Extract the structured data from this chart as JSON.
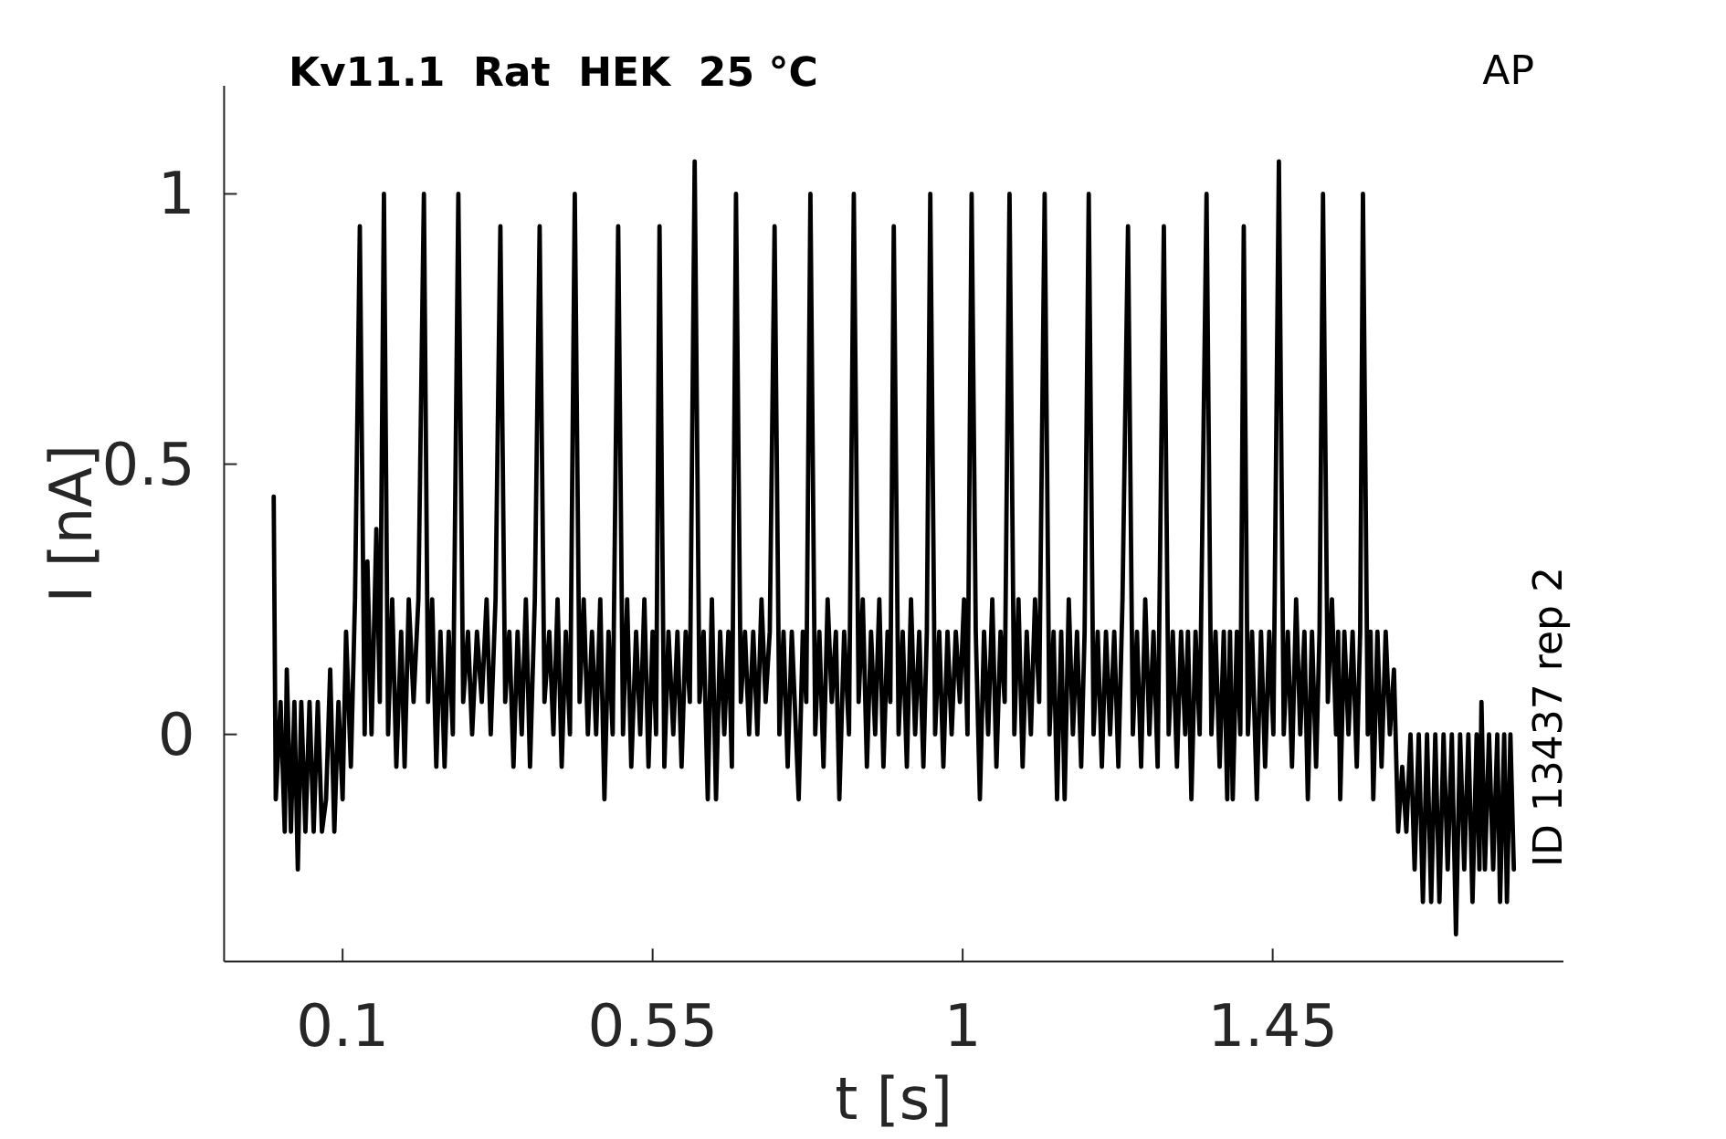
{
  "chart_data": {
    "type": "line",
    "title": "Kv11.1  Rat  HEK  25 °C",
    "xlabel": "t [s]",
    "ylabel": "I [nA]",
    "annotations": [
      "AP",
      "ID 13437 rep 2"
    ],
    "xlim": [
      -0.072,
      1.872
    ],
    "ylim": [
      -0.42,
      1.2
    ],
    "xticks": [
      0.1,
      0.55,
      1,
      1.45
    ],
    "yticks": [
      0,
      0.5,
      1
    ],
    "color": "#000000",
    "x": [
      0,
      0.003,
      0.01,
      0.016,
      0.019,
      0.025,
      0.03,
      0.035,
      0.04,
      0.046,
      0.052,
      0.058,
      0.064,
      0.07,
      0.076,
      0.082,
      0.088,
      0.094,
      0.1,
      0.105,
      0.112,
      0.118,
      0.125,
      0.132,
      0.136,
      0.142,
      0.149,
      0.154,
      0.16,
      0.166,
      0.172,
      0.178,
      0.185,
      0.19,
      0.196,
      0.203,
      0.21,
      0.218,
      0.224,
      0.23,
      0.236,
      0.242,
      0.248,
      0.254,
      0.26,
      0.268,
      0.275,
      0.282,
      0.288,
      0.295,
      0.302,
      0.309,
      0.315,
      0.322,
      0.329,
      0.336,
      0.342,
      0.348,
      0.354,
      0.36,
      0.366,
      0.372,
      0.379,
      0.386,
      0.393,
      0.4,
      0.406,
      0.412,
      0.418,
      0.424,
      0.43,
      0.437,
      0.444,
      0.45,
      0.456,
      0.462,
      0.468,
      0.474,
      0.48,
      0.486,
      0.492,
      0.5,
      0.507,
      0.513,
      0.519,
      0.526,
      0.532,
      0.538,
      0.544,
      0.55,
      0.555,
      0.56,
      0.567,
      0.573,
      0.58,
      0.586,
      0.592,
      0.598,
      0.604,
      0.611,
      0.618,
      0.624,
      0.63,
      0.636,
      0.642,
      0.648,
      0.654,
      0.66,
      0.665,
      0.671,
      0.678,
      0.684,
      0.69,
      0.696,
      0.702,
      0.708,
      0.714,
      0.72,
      0.727,
      0.734,
      0.74,
      0.746,
      0.752,
      0.762,
      0.768,
      0.773,
      0.779,
      0.786,
      0.792,
      0.798,
      0.804,
      0.81,
      0.816,
      0.821,
      0.828,
      0.835,
      0.842,
      0.849,
      0.855,
      0.861,
      0.867,
      0.873,
      0.879,
      0.885,
      0.891,
      0.895,
      0.9,
      0.907,
      0.913,
      0.919,
      0.925,
      0.931,
      0.937,
      0.943,
      0.948,
      0.953,
      0.96,
      0.966,
      0.972,
      0.978,
      0.984,
      0.99,
      0.996,
      1.002,
      1.007,
      1.013,
      1.019,
      1.025,
      1.031,
      1.037,
      1.043,
      1.049,
      1.055,
      1.061,
      1.068,
      1.075,
      1.081,
      1.087,
      1.093,
      1.099,
      1.105,
      1.111,
      1.119,
      1.126,
      1.132,
      1.137,
      1.143,
      1.148,
      1.154,
      1.16,
      1.166,
      1.172,
      1.177,
      1.183,
      1.19,
      1.196,
      1.202,
      1.208,
      1.214,
      1.22,
      1.226,
      1.232,
      1.24,
      1.247,
      1.253,
      1.259,
      1.265,
      1.271,
      1.277,
      1.283,
      1.292,
      1.299,
      1.305,
      1.311,
      1.317,
      1.323,
      1.327,
      1.332,
      1.338,
      1.344,
      1.354,
      1.361,
      1.367,
      1.373,
      1.379,
      1.384,
      1.388,
      1.392,
      1.398,
      1.403,
      1.408,
      1.414,
      1.42,
      1.427,
      1.433,
      1.439,
      1.445,
      1.451,
      1.459,
      1.466,
      1.472,
      1.478,
      1.484,
      1.49,
      1.496,
      1.501,
      1.507,
      1.513,
      1.518,
      1.523,
      1.53,
      1.536,
      1.542,
      1.545,
      1.548,
      1.554,
      1.56,
      1.566,
      1.572,
      1.577,
      1.581,
      1.588,
      1.592,
      1.596,
      1.602,
      1.608,
      1.614,
      1.62,
      1.626,
      1.632,
      1.638,
      1.644,
      1.65,
      1.656,
      1.662,
      1.668,
      1.674,
      1.68,
      1.686,
      1.692,
      1.698,
      1.704,
      1.71,
      1.716,
      1.722,
      1.728,
      1.734,
      1.74,
      1.746,
      1.75,
      1.753,
      1.758,
      1.764,
      1.77,
      1.776,
      1.78,
      1.786,
      1.79,
      1.795,
      1.8
    ],
    "values": [
      0.44,
      -0.12,
      0.06,
      -0.18,
      0.12,
      -0.18,
      0.06,
      -0.25,
      0.06,
      -0.18,
      0.06,
      -0.18,
      0.06,
      -0.18,
      -0.12,
      0.12,
      -0.18,
      0.06,
      -0.12,
      0.19,
      -0.06,
      0.25,
      0.94,
      0,
      0.32,
      0,
      0.38,
      0.06,
      1,
      0,
      0.25,
      -0.06,
      0.19,
      -0.06,
      0.25,
      0.06,
      0.25,
      1,
      0.06,
      0.25,
      -0.06,
      0.19,
      -0.06,
      0.19,
      0,
      1,
      0.06,
      0.19,
      0,
      0.19,
      0.06,
      0.25,
      0,
      0.25,
      0.94,
      0.06,
      0.19,
      -0.06,
      0.19,
      0,
      0.25,
      -0.06,
      0.25,
      0.94,
      0.06,
      0.19,
      0,
      0.25,
      -0.06,
      0.19,
      0,
      1,
      0.06,
      0.25,
      0,
      0.19,
      0,
      0.25,
      -0.12,
      0.19,
      0,
      0.94,
      0,
      0.25,
      -0.06,
      0.19,
      0,
      0.25,
      -0.06,
      0.19,
      0,
      0.94,
      -0.06,
      0.19,
      0,
      0.19,
      -0.06,
      0.19,
      0.06,
      1.06,
      0.06,
      0.19,
      -0.12,
      0.25,
      -0.12,
      0.19,
      0,
      0.19,
      -0.06,
      1,
      0.06,
      0.19,
      0,
      0.19,
      0,
      0.25,
      0.06,
      0.19,
      0.94,
      0,
      0.19,
      -0.06,
      0.19,
      -0.12,
      0.19,
      0.06,
      1,
      0,
      0.19,
      -0.06,
      0.25,
      0.06,
      0.19,
      -0.12,
      0.19,
      0,
      1,
      0.06,
      0.25,
      -0.06,
      0.19,
      0,
      0.25,
      -0.06,
      0.19,
      0.06,
      0.94,
      0,
      0.19,
      -0.06,
      0.25,
      0,
      0.19,
      -0.06,
      0.19,
      1,
      0,
      0.19,
      -0.06,
      0.19,
      0,
      0.19,
      0.06,
      0.25,
      0,
      1,
      0.19,
      -0.12,
      0.19,
      0,
      0.25,
      -0.06,
      0.19,
      0.06,
      1,
      0,
      0.25,
      -0.06,
      0.19,
      0,
      0.25,
      0.06,
      1,
      0,
      0.19,
      -0.12,
      0.19,
      -0.12,
      0.25,
      0,
      0.19,
      -0.06,
      0.19,
      1,
      0,
      0.19,
      -0.06,
      0.19,
      0,
      0.19,
      -0.06,
      0.25,
      0.94,
      0,
      0.19,
      -0.06,
      0.25,
      0,
      0.19,
      -0.06,
      0.94,
      0,
      0.19,
      -0.06,
      0.19,
      0,
      0.19,
      -0.12,
      0.19,
      0,
      1,
      0,
      0.19,
      -0.06,
      0.19,
      -0.12,
      0.19,
      -0.12,
      0.19,
      0,
      0.94,
      0,
      0.19,
      -0.12,
      0.19,
      -0.06,
      0.19,
      0,
      1.06,
      0,
      0.19,
      -0.06,
      0.25,
      0,
      0.19,
      -0.12,
      0.19,
      -0.06,
      0.19,
      1,
      0.06,
      0.25,
      0,
      0.19,
      -0.12,
      0.19,
      0,
      0.19,
      -0.06,
      0.19,
      1,
      0,
      0.19,
      -0.12,
      0.19,
      -0.06,
      0.19,
      0,
      0.12,
      -0.18,
      -0.06,
      -0.18,
      0,
      -0.25,
      0,
      -0.31,
      0,
      -0.31,
      0,
      -0.31,
      0,
      -0.25,
      0,
      -0.37,
      0,
      -0.25,
      0,
      -0.31,
      0,
      -0.25,
      0.06,
      -0.25,
      0,
      -0.25,
      0,
      -0.31,
      0,
      -0.31,
      0,
      -0.25
    ]
  }
}
